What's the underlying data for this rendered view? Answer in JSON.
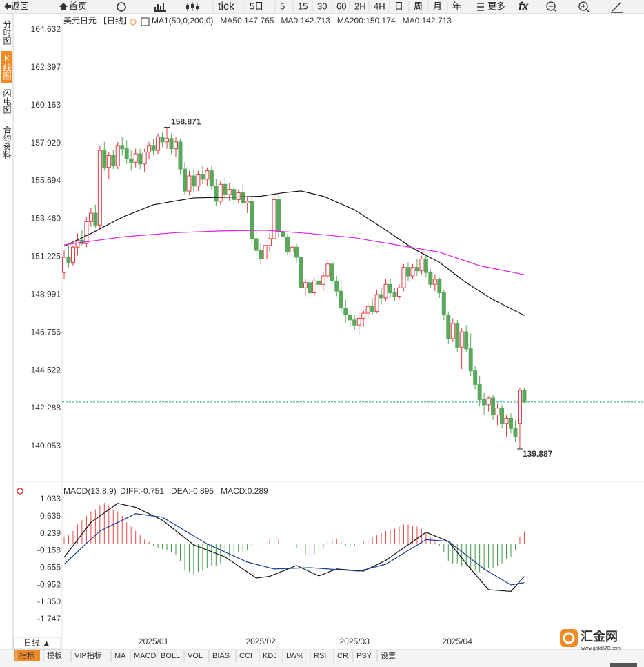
{
  "toolbar": {
    "back": "返回",
    "home": "首页",
    "periods": [
      "tick",
      "5日",
      "5",
      "15",
      "30",
      "60",
      "2H",
      "4H",
      "日",
      "周",
      "月",
      "年"
    ],
    "more": "更多",
    "fx": "fx"
  },
  "sidebar": [
    "分时图",
    "K线图",
    "闪电图",
    "合约资料"
  ],
  "chart_data": [
    {
      "type": "candlestick",
      "title": "美元日元",
      "period": "【日线】",
      "legend": [
        "MA1(50,0,200,0)",
        "MA50:147.765",
        "MA0:142.713",
        "MA200:150.174",
        "MA0:142.713"
      ],
      "legend_colors": [
        "#222222",
        "#222222",
        "#1a237e",
        "#d010d0",
        "#f0a030"
      ],
      "up_color": "#e0393e",
      "down_color": "#5aa85c",
      "categories": [
        null,
        null,
        null,
        null,
        null,
        null,
        null,
        null,
        null,
        null,
        null,
        null,
        null,
        null,
        null,
        null,
        null,
        null,
        null,
        null,
        "2025/01",
        null,
        null,
        null,
        null,
        null,
        null,
        null,
        null,
        null,
        null,
        null,
        null,
        null,
        null,
        null,
        null,
        null,
        null,
        null,
        null,
        null,
        null,
        null,
        "2025/02",
        null,
        null,
        null,
        null,
        null,
        null,
        null,
        null,
        null,
        null,
        null,
        null,
        null,
        null,
        null,
        null,
        null,
        null,
        null,
        null,
        "2025/03",
        null,
        null,
        null,
        null,
        null,
        null,
        null,
        null,
        null,
        null,
        null,
        null,
        null,
        null,
        null,
        null,
        null,
        null,
        null,
        null,
        null,
        null,
        "2025/04",
        null,
        null,
        null,
        null,
        null,
        null,
        null,
        null,
        null,
        null,
        null,
        null,
        null,
        null,
        null
      ],
      "candles": [
        [
          150.3,
          151.6,
          149.9,
          151.2
        ],
        [
          151.2,
          151.9,
          150.6,
          150.9
        ],
        [
          150.9,
          151.9,
          150.7,
          151.8
        ],
        [
          151.8,
          152.6,
          151.3,
          152.2
        ],
        [
          152.2,
          152.8,
          151.9,
          152.0
        ],
        [
          152.0,
          153.6,
          151.8,
          153.3
        ],
        [
          153.3,
          154.1,
          153.0,
          153.8
        ],
        [
          153.8,
          154.3,
          152.9,
          153.1
        ],
        [
          153.1,
          157.8,
          152.9,
          157.5
        ],
        [
          157.5,
          158.0,
          156.3,
          156.5
        ],
        [
          156.5,
          157.4,
          155.8,
          157.2
        ],
        [
          157.2,
          157.5,
          156.4,
          156.6
        ],
        [
          156.6,
          158.0,
          156.4,
          157.8
        ],
        [
          157.8,
          158.3,
          157.2,
          157.6
        ],
        [
          157.6,
          158.1,
          156.7,
          157.0
        ],
        [
          157.0,
          157.5,
          156.3,
          156.8
        ],
        [
          156.8,
          157.6,
          156.5,
          157.3
        ],
        [
          157.3,
          157.6,
          156.4,
          156.7
        ],
        [
          156.7,
          157.6,
          156.2,
          157.4
        ],
        [
          157.4,
          158.0,
          157.0,
          157.8
        ],
        [
          157.8,
          158.2,
          157.2,
          157.5
        ],
        [
          157.5,
          158.5,
          157.3,
          158.3
        ],
        [
          158.3,
          158.6,
          157.7,
          158.0
        ],
        [
          158.0,
          158.871,
          157.6,
          158.2
        ],
        [
          158.2,
          158.5,
          157.3,
          157.6
        ],
        [
          157.6,
          158.3,
          157.1,
          158.0
        ],
        [
          158.0,
          158.2,
          156.1,
          156.4
        ],
        [
          156.4,
          156.8,
          154.9,
          155.1
        ],
        [
          155.1,
          156.3,
          154.9,
          156.0
        ],
        [
          156.0,
          156.4,
          155.0,
          155.4
        ],
        [
          155.4,
          156.3,
          155.1,
          156.1
        ],
        [
          156.1,
          156.6,
          155.5,
          155.8
        ],
        [
          155.8,
          156.5,
          155.4,
          156.3
        ],
        [
          156.3,
          156.6,
          155.2,
          155.4
        ],
        [
          155.4,
          155.8,
          154.2,
          154.5
        ],
        [
          154.5,
          155.7,
          154.3,
          155.5
        ],
        [
          155.5,
          155.9,
          154.6,
          154.9
        ],
        [
          154.9,
          155.6,
          154.5,
          155.2
        ],
        [
          155.2,
          155.5,
          154.3,
          154.6
        ],
        [
          154.6,
          155.2,
          154.4,
          155.0
        ],
        [
          155.0,
          155.5,
          154.2,
          154.4
        ],
        [
          154.4,
          154.8,
          153.8,
          154.5
        ],
        [
          154.5,
          154.8,
          152.0,
          152.3
        ],
        [
          152.3,
          152.7,
          151.3,
          151.6
        ],
        [
          151.6,
          152.0,
          150.8,
          151.1
        ],
        [
          151.1,
          152.1,
          150.9,
          151.9
        ],
        [
          151.9,
          152.6,
          151.5,
          152.3
        ],
        [
          152.3,
          154.9,
          152.0,
          154.6
        ],
        [
          154.6,
          154.9,
          152.4,
          152.7
        ],
        [
          152.7,
          153.2,
          152.1,
          152.4
        ],
        [
          152.4,
          152.6,
          151.3,
          151.5
        ],
        [
          151.5,
          152.0,
          150.9,
          151.8
        ],
        [
          151.8,
          152.0,
          150.9,
          151.2
        ],
        [
          151.2,
          151.4,
          149.1,
          149.4
        ],
        [
          149.4,
          149.9,
          148.9,
          149.7
        ],
        [
          149.7,
          150.0,
          148.7,
          149.1
        ],
        [
          149.1,
          150.0,
          148.9,
          149.8
        ],
        [
          149.8,
          150.2,
          149.3,
          149.6
        ],
        [
          149.6,
          150.3,
          149.2,
          150.1
        ],
        [
          150.1,
          151.1,
          149.9,
          150.8
        ],
        [
          150.8,
          151.0,
          149.6,
          149.8
        ],
        [
          149.8,
          150.1,
          148.9,
          149.2
        ],
        [
          149.2,
          149.8,
          147.9,
          148.2
        ],
        [
          148.2,
          148.7,
          147.3,
          147.8
        ],
        [
          147.8,
          148.3,
          147.1,
          147.5
        ],
        [
          147.5,
          147.8,
          146.9,
          147.2
        ],
        [
          147.2,
          148.0,
          146.6,
          147.6
        ],
        [
          147.6,
          148.1,
          147.1,
          147.9
        ],
        [
          147.9,
          148.5,
          147.6,
          148.3
        ],
        [
          148.3,
          148.8,
          147.8,
          148.0
        ],
        [
          148.0,
          149.3,
          147.9,
          149.0
        ],
        [
          149.0,
          149.4,
          148.4,
          148.8
        ],
        [
          148.8,
          149.9,
          148.6,
          149.6
        ],
        [
          149.6,
          149.9,
          148.8,
          149.1
        ],
        [
          149.1,
          149.4,
          148.6,
          148.9
        ],
        [
          148.9,
          149.6,
          148.7,
          149.4
        ],
        [
          149.4,
          150.8,
          149.2,
          150.6
        ],
        [
          150.6,
          150.9,
          149.8,
          150.1
        ],
        [
          150.1,
          150.8,
          149.9,
          150.6
        ],
        [
          150.6,
          151.1,
          150.1,
          150.4
        ],
        [
          150.4,
          151.3,
          150.2,
          151.1
        ],
        [
          151.1,
          151.3,
          150.0,
          150.3
        ],
        [
          150.3,
          150.5,
          149.4,
          149.6
        ],
        [
          149.6,
          150.2,
          149.2,
          149.9
        ],
        [
          149.9,
          150.0,
          148.8,
          149.1
        ],
        [
          149.1,
          149.3,
          147.5,
          147.8
        ],
        [
          147.8,
          148.0,
          146.1,
          146.4
        ],
        [
          146.4,
          147.6,
          146.2,
          147.3
        ],
        [
          147.3,
          147.5,
          145.6,
          145.9
        ],
        [
          145.9,
          147.0,
          144.6,
          146.8
        ],
        [
          146.8,
          147.2,
          145.6,
          145.8
        ],
        [
          145.8,
          146.7,
          144.2,
          144.5
        ],
        [
          144.5,
          144.8,
          143.4,
          143.7
        ],
        [
          143.7,
          144.2,
          142.4,
          142.8
        ],
        [
          142.8,
          143.2,
          141.9,
          142.5
        ],
        [
          142.5,
          143.0,
          142.1,
          142.9
        ],
        [
          142.9,
          143.1,
          141.6,
          141.9
        ],
        [
          141.9,
          142.6,
          141.3,
          142.3
        ],
        [
          142.3,
          142.5,
          141.1,
          141.4
        ],
        [
          141.4,
          141.9,
          140.6,
          141.7
        ],
        [
          141.7,
          142.0,
          140.8,
          141.1
        ],
        [
          141.1,
          141.6,
          140.3,
          140.6
        ],
        [
          141.4,
          143.5,
          139.887,
          143.35
        ],
        [
          143.35,
          143.5,
          142.6,
          142.66
        ]
      ],
      "series": [
        {
          "name": "MA50",
          "color": "#111111",
          "x": [
            0,
            6,
            13,
            20,
            29,
            38,
            44,
            49,
            53,
            58,
            65,
            72,
            78,
            84,
            90,
            96,
            103
          ],
          "values": [
            151.85,
            152.6,
            153.56,
            154.3,
            154.7,
            154.75,
            154.8,
            155.0,
            155.11,
            154.8,
            154.0,
            152.8,
            151.73,
            150.9,
            149.7,
            148.7,
            147.765
          ]
        },
        {
          "name": "MA200",
          "color": "#e020e0",
          "x": [
            0,
            13,
            25,
            35,
            45,
            55,
            65,
            75,
            84,
            93,
            103
          ],
          "values": [
            151.93,
            152.4,
            152.65,
            152.75,
            152.79,
            152.6,
            152.35,
            151.9,
            151.5,
            150.7,
            150.174
          ]
        }
      ],
      "reference_line": 142.66,
      "reference_color": "#1f9d8a",
      "annotations": {
        "high_index": 23,
        "low_index": 102
      },
      "high_color": "#d03a3a",
      "low_color": "#5aa85c",
      "ylim": [
        138.3,
        165.48
      ],
      "yticks": [
        164.632,
        162.397,
        160.163,
        157.929,
        155.694,
        {
          "value": 153.46,
          "label": "153.460"
        },
        151.225,
        148.991,
        146.756,
        144.522,
        142.288,
        140.053
      ]
    },
    {
      "type": "macd",
      "title": "MACD(13,8,9)",
      "legend": [
        "DIFF:-0.751",
        "DEA:-0.895",
        "MACD:0.289"
      ],
      "legend_colors": [
        "#222222",
        "#1a237e",
        "#d010d0"
      ],
      "series": [
        {
          "name": "DIFF",
          "color": "#111111",
          "x": [
            0,
            6,
            12,
            16,
            22,
            29,
            36,
            43,
            46,
            52,
            57,
            61,
            67,
            72,
            81,
            86,
            91,
            95,
            100,
            103
          ],
          "values": [
            -0.31,
            0.5,
            0.94,
            0.85,
            0.55,
            -0.02,
            -0.3,
            -0.79,
            -0.75,
            -0.5,
            -0.74,
            -0.58,
            -0.63,
            -0.38,
            0.27,
            0.06,
            -0.58,
            -1.06,
            -1.1,
            -0.751
          ]
        },
        {
          "name": "DEA",
          "color": "#1a3a9a",
          "x": [
            0,
            8,
            16,
            22,
            32,
            41,
            47,
            55,
            66,
            72,
            81,
            86,
            94,
            100,
            103
          ],
          "values": [
            -0.47,
            0.3,
            0.7,
            0.62,
            0.0,
            -0.42,
            -0.58,
            -0.55,
            -0.63,
            -0.47,
            0.1,
            0.06,
            -0.58,
            -0.95,
            -0.895
          ]
        }
      ],
      "histogram": [
        0.15,
        0.2,
        0.3,
        0.45,
        0.55,
        0.65,
        0.75,
        0.8,
        0.9,
        0.95,
        0.9,
        0.8,
        0.75,
        0.65,
        0.5,
        0.4,
        0.3,
        0.2,
        0.1,
        0.05,
        -0.05,
        -0.1,
        -0.12,
        -0.15,
        -0.2,
        -0.25,
        -0.4,
        -0.6,
        -0.65,
        -0.7,
        -0.65,
        -0.6,
        -0.55,
        -0.5,
        -0.5,
        -0.45,
        -0.35,
        -0.3,
        -0.25,
        -0.2,
        -0.2,
        -0.15,
        -0.05,
        -0.02,
        0.02,
        0.05,
        0.1,
        0.15,
        0.12,
        0.05,
        0.0,
        -0.05,
        -0.1,
        -0.2,
        -0.25,
        -0.3,
        -0.25,
        -0.2,
        -0.1,
        0.05,
        0.1,
        0.12,
        0.05,
        -0.05,
        -0.08,
        -0.05,
        -0.02,
        0.05,
        0.1,
        0.15,
        0.2,
        0.25,
        0.3,
        0.32,
        0.35,
        0.4,
        0.45,
        0.45,
        0.42,
        0.4,
        0.35,
        0.25,
        0.15,
        0.05,
        -0.05,
        -0.2,
        -0.4,
        -0.45,
        -0.45,
        -0.5,
        -0.5,
        -0.55,
        -0.6,
        -0.65,
        -0.6,
        -0.55,
        -0.55,
        -0.5,
        -0.45,
        -0.35,
        -0.3,
        -0.15,
        0.15,
        0.289
      ],
      "up_color": "#e04a4a",
      "down_color": "#3f9a45",
      "ylim": [
        -2.1,
        1.336
      ],
      "yticks": [
        1.033,
        0.636,
        0.239,
        -0.158,
        -0.555,
        -0.952,
        {
          "value": -1.35,
          "label": "-1.350"
        },
        -1.747
      ]
    }
  ],
  "bottom": {
    "period": "日线 ▲",
    "tabs": [
      "指标",
      "模板",
      "VIP指标",
      "MA",
      "MACD",
      "BOLL",
      "VOL",
      "BIAS",
      "CCI",
      "KDJ",
      "LW%",
      "RSI",
      "CR",
      "PSY",
      "设置"
    ],
    "logo": "汇金网",
    "logo_url": "www.gold678.com"
  }
}
